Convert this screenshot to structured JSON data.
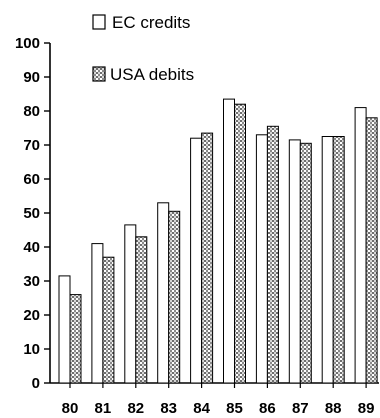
{
  "chart_data": {
    "type": "bar",
    "categories": [
      "80",
      "81",
      "82",
      "83",
      "84",
      "85",
      "86",
      "87",
      "88",
      "89"
    ],
    "series": [
      {
        "name": "EC credits",
        "values": [
          31.5,
          41,
          46.5,
          53,
          72,
          83.5,
          73,
          71.5,
          72.5,
          81
        ],
        "fill": "#ffffff"
      },
      {
        "name": "USA debits",
        "values": [
          26,
          37,
          43,
          50.5,
          73.5,
          82,
          75.5,
          70.5,
          72.5,
          78
        ],
        "fill": "#b8b8b8"
      }
    ],
    "y_ticks": [
      "0",
      "10",
      "20",
      "30",
      "40",
      "50",
      "60",
      "70",
      "80",
      "90",
      "100"
    ],
    "ylim": [
      0,
      100
    ],
    "grid": false,
    "legend_position": "top-left",
    "title": "",
    "xlabel": "",
    "ylabel": ""
  }
}
